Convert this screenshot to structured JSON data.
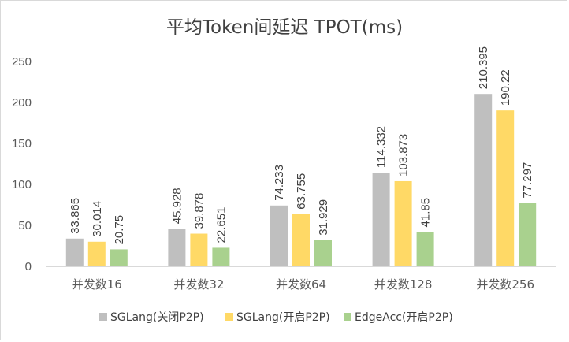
{
  "chart_data": {
    "type": "bar",
    "title": "平均Token间延迟 TPOT(ms)",
    "categories": [
      "并发数16",
      "并发数32",
      "并发数64",
      "并发数128",
      "并发数256"
    ],
    "series": [
      {
        "name": "SGLang(关闭P2P)",
        "color": "#bfbfbf",
        "values": [
          33.865,
          45.928,
          74.233,
          114.332,
          210.395
        ]
      },
      {
        "name": "SGLang(开启P2P)",
        "color": "#ffd966",
        "values": [
          30.014,
          39.878,
          63.755,
          103.873,
          190.22
        ]
      },
      {
        "name": "EdgeAcc(开启P2P)",
        "color": "#a9d18e",
        "values": [
          20.75,
          22.651,
          31.929,
          41.85,
          77.297
        ]
      }
    ],
    "yticks": [
      "0",
      "50",
      "100",
      "150",
      "200",
      "250"
    ],
    "ylim": [
      0,
      250
    ],
    "grid": false,
    "legend": "bottom"
  }
}
